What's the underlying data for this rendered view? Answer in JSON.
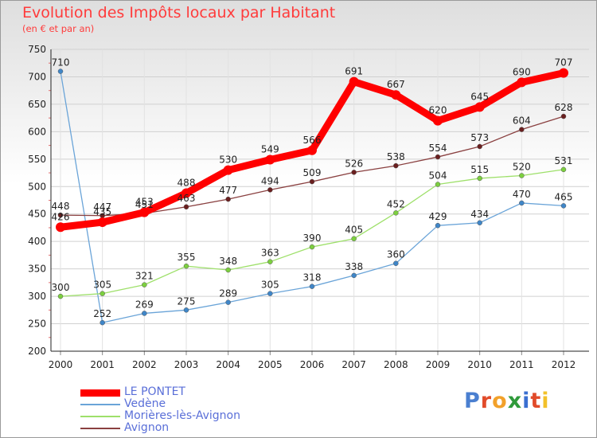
{
  "title": "Evolution des Impôts locaux par Habitant",
  "subtitle": "(en € et par an)",
  "logo": {
    "text": "Proxiti",
    "letter_colors": [
      "#4a7fd0",
      "#e14b2a",
      "#f2a12a",
      "#2f9a3a",
      "#3a6fd0",
      "#e14b2a",
      "#f2c12a"
    ]
  },
  "chart_data": {
    "type": "line",
    "title": "Evolution des Impôts locaux par Habitant",
    "subtitle": "(en € et par an)",
    "xlabel": "",
    "ylabel": "",
    "ylim": [
      200,
      750
    ],
    "yticks": [
      200,
      250,
      300,
      350,
      400,
      450,
      500,
      550,
      600,
      650,
      700,
      750
    ],
    "grid": true,
    "legend_position": "bottom-left",
    "x": [
      "2000",
      "2001",
      "2002",
      "2003",
      "2004",
      "2005",
      "2006",
      "2007",
      "2008",
      "2009",
      "2010",
      "2011",
      "2012"
    ],
    "series": [
      {
        "name": "LE PONTET",
        "color": "#ff0000",
        "marker_color": "#ff0000",
        "thick": true,
        "values": [
          426,
          435,
          453,
          488,
          530,
          549,
          566,
          691,
          667,
          620,
          645,
          690,
          707
        ],
        "labels": [
          "426",
          "435",
          "453",
          "488",
          "530",
          "549",
          "566",
          "691",
          "667",
          "620",
          "645",
          "690",
          "707"
        ]
      },
      {
        "name": "Vedène",
        "color": "#6aa4d8",
        "marker_color": "#3f86c8",
        "thick": false,
        "values": [
          710,
          252,
          269,
          275,
          289,
          305,
          318,
          338,
          360,
          429,
          434,
          470,
          465
        ],
        "labels": [
          "710",
          "252",
          "269",
          "275",
          "289",
          "305",
          "318",
          "338",
          "360",
          "429",
          "434",
          "470",
          "465"
        ]
      },
      {
        "name": "Morières-lès-Avignon",
        "color": "#9ee06a",
        "marker_color": "#7ccf3f",
        "thick": false,
        "values": [
          300,
          305,
          321,
          355,
          348,
          363,
          390,
          405,
          452,
          504,
          515,
          520,
          531
        ],
        "labels": [
          "300",
          "305",
          "321",
          "355",
          "348",
          "363",
          "390",
          "405",
          "452",
          "504",
          "515",
          "520",
          "531"
        ]
      },
      {
        "name": "Avignon",
        "color": "#8a4040",
        "marker_color": "#6a1f1f",
        "thick": false,
        "values": [
          448,
          447,
          451,
          463,
          477,
          494,
          509,
          526,
          538,
          554,
          573,
          604,
          628
        ],
        "labels": [
          "448",
          "447",
          "451",
          "463",
          "477",
          "494",
          "509",
          "526",
          "538",
          "554",
          "573",
          "604",
          "628"
        ]
      }
    ]
  }
}
